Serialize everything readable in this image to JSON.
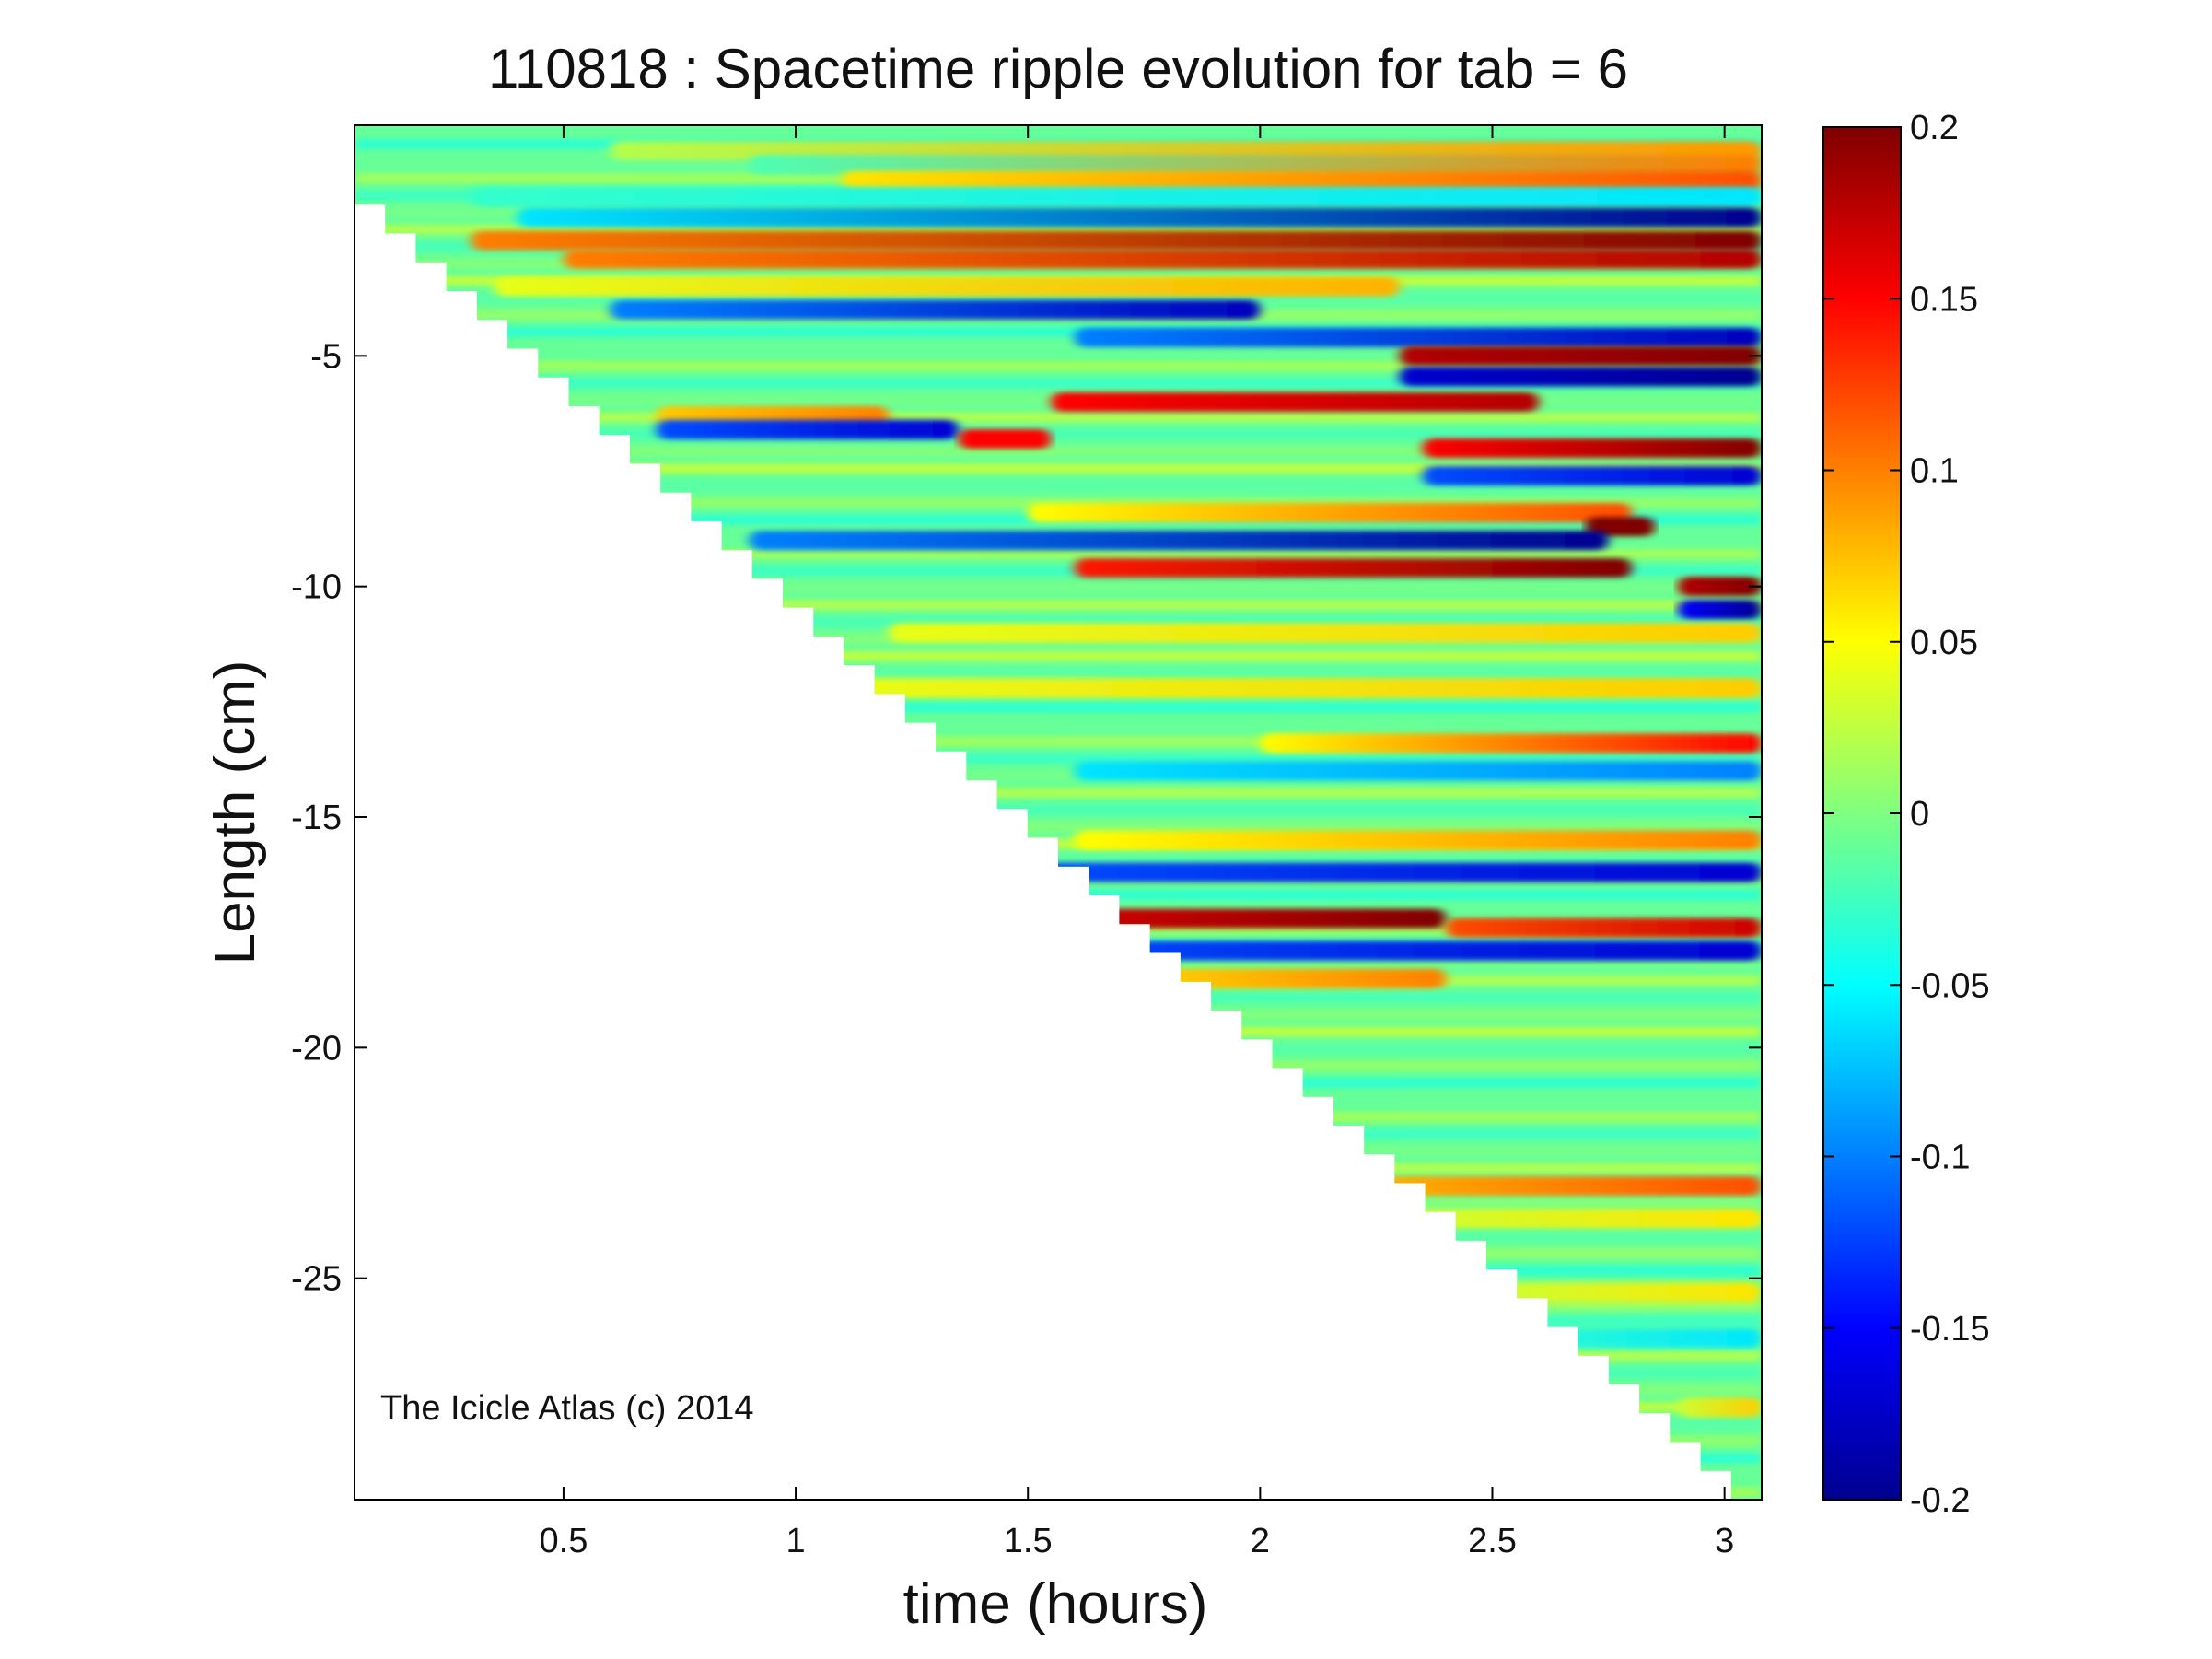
{
  "chart_data": {
    "type": "heatmap",
    "title": "110818 : Spacetime ripple evolution for tab = 6",
    "xlabel": "time (hours)",
    "ylabel": "Length (cm)",
    "xlim": [
      0.05,
      3.08
    ],
    "ylim": [
      -29.8,
      0
    ],
    "xticks": [
      0.5,
      1,
      1.5,
      2,
      2.5,
      3
    ],
    "xtick_labels": [
      "0.5",
      "1",
      "1.5",
      "2",
      "2.5",
      "3"
    ],
    "yticks": [
      -5,
      -10,
      -15,
      -20,
      -25
    ],
    "ytick_labels": [
      "-5",
      "-10",
      "-15",
      "-20",
      "-25"
    ],
    "colorbar": {
      "colormap": "jet",
      "clim": [
        -0.2,
        0.2
      ],
      "ticks": [
        0.2,
        0.15,
        0.1,
        0.05,
        0,
        -0.05,
        -0.1,
        -0.15,
        -0.2
      ],
      "tick_labels": [
        "0.2",
        "0.15",
        "0.1",
        "0.05",
        "0",
        "-0.05",
        "-0.1",
        "-0.15",
        "-0.2"
      ]
    },
    "annotation": "The Icicle Atlas (c) 2014",
    "data_boundary": {
      "description_points": [
        [
          0.05,
          -1.1
        ],
        [
          3.08,
          -29.8
        ]
      ]
    },
    "bands": [
      {
        "y": -0.55,
        "t0": 0.6,
        "t1": 3.08,
        "v0": 0.02,
        "v1": 0.09
      },
      {
        "y": -0.85,
        "t0": 0.9,
        "t1": 3.08,
        "v0": -0.02,
        "v1": 0.1
      },
      {
        "y": -1.2,
        "t0": 1.1,
        "t1": 3.08,
        "v0": 0.06,
        "v1": 0.12
      },
      {
        "y": -1.55,
        "t0": 0.3,
        "t1": 3.08,
        "v0": -0.03,
        "v1": -0.06
      },
      {
        "y": -2.0,
        "t0": 0.4,
        "t1": 3.08,
        "v0": -0.06,
        "v1": -0.2
      },
      {
        "y": -2.5,
        "t0": 0.3,
        "t1": 3.08,
        "v0": 0.1,
        "v1": 0.2
      },
      {
        "y": -2.9,
        "t0": 0.5,
        "t1": 3.08,
        "v0": 0.1,
        "v1": 0.18
      },
      {
        "y": -3.5,
        "t0": 0.35,
        "t1": 2.3,
        "v0": 0.04,
        "v1": 0.08
      },
      {
        "y": -4.0,
        "t0": 0.6,
        "t1": 2.0,
        "v0": -0.1,
        "v1": -0.18
      },
      {
        "y": -4.6,
        "t0": 1.6,
        "t1": 3.08,
        "v0": -0.1,
        "v1": -0.18
      },
      {
        "y": -5.0,
        "t0": 2.3,
        "t1": 3.08,
        "v0": 0.18,
        "v1": 0.2
      },
      {
        "y": -5.45,
        "t0": 2.3,
        "t1": 3.08,
        "v0": -0.17,
        "v1": -0.2
      },
      {
        "y": -6.0,
        "t0": 1.55,
        "t1": 2.6,
        "v0": 0.15,
        "v1": 0.18
      },
      {
        "y": -6.3,
        "t0": 0.7,
        "t1": 1.2,
        "v0": 0.07,
        "v1": 0.1
      },
      {
        "y": -6.6,
        "t0": 0.7,
        "t1": 1.35,
        "v0": -0.12,
        "v1": -0.17
      },
      {
        "y": -6.8,
        "t0": 1.35,
        "t1": 1.55,
        "v0": 0.15,
        "v1": 0.15
      },
      {
        "y": -7.0,
        "t0": 2.35,
        "t1": 3.08,
        "v0": 0.15,
        "v1": 0.2
      },
      {
        "y": -7.6,
        "t0": 2.35,
        "t1": 3.08,
        "v0": -0.12,
        "v1": -0.17
      },
      {
        "y": -8.4,
        "t0": 1.5,
        "t1": 2.8,
        "v0": 0.05,
        "v1": 0.12
      },
      {
        "y": -8.7,
        "t0": 2.7,
        "t1": 2.85,
        "v0": 0.2,
        "v1": 0.2
      },
      {
        "y": -9.0,
        "t0": 0.9,
        "t1": 2.75,
        "v0": -0.1,
        "v1": -0.2
      },
      {
        "y": -9.6,
        "t0": 1.6,
        "t1": 2.8,
        "v0": 0.14,
        "v1": 0.2
      },
      {
        "y": -10.0,
        "t0": 2.9,
        "t1": 3.08,
        "v0": 0.18,
        "v1": 0.2
      },
      {
        "y": -10.5,
        "t0": 2.9,
        "t1": 3.08,
        "v0": -0.15,
        "v1": -0.2
      },
      {
        "y": -11.0,
        "t0": 1.2,
        "t1": 3.08,
        "v0": 0.04,
        "v1": 0.07
      },
      {
        "y": -12.2,
        "t0": 1.0,
        "t1": 3.08,
        "v0": 0.04,
        "v1": 0.07
      },
      {
        "y": -13.4,
        "t0": 2.0,
        "t1": 3.08,
        "v0": 0.05,
        "v1": 0.15
      },
      {
        "y": -14.0,
        "t0": 1.6,
        "t1": 3.08,
        "v0": -0.06,
        "v1": -0.1
      },
      {
        "y": -15.5,
        "t0": 1.6,
        "t1": 3.08,
        "v0": 0.05,
        "v1": 0.1
      },
      {
        "y": -16.2,
        "t0": 1.5,
        "t1": 3.08,
        "v0": -0.12,
        "v1": -0.17
      },
      {
        "y": -17.2,
        "t0": 1.4,
        "t1": 2.4,
        "v0": 0.16,
        "v1": 0.2
      },
      {
        "y": -17.4,
        "t0": 2.4,
        "t1": 3.08,
        "v0": 0.12,
        "v1": 0.17
      },
      {
        "y": -17.9,
        "t0": 1.5,
        "t1": 3.08,
        "v0": -0.12,
        "v1": -0.17
      },
      {
        "y": -18.5,
        "t0": 1.6,
        "t1": 2.4,
        "v0": 0.06,
        "v1": 0.1
      },
      {
        "y": -23.0,
        "t0": 2.25,
        "t1": 3.08,
        "v0": 0.08,
        "v1": 0.12
      },
      {
        "y": -23.7,
        "t0": 2.3,
        "t1": 3.08,
        "v0": 0.03,
        "v1": 0.06
      },
      {
        "y": -25.3,
        "t0": 2.5,
        "t1": 3.08,
        "v0": 0.03,
        "v1": 0.06
      },
      {
        "y": -26.3,
        "t0": 2.5,
        "t1": 3.08,
        "v0": -0.03,
        "v1": -0.06
      },
      {
        "y": -27.8,
        "t0": 2.9,
        "t1": 3.08,
        "v0": 0.03,
        "v1": 0.07
      }
    ]
  }
}
